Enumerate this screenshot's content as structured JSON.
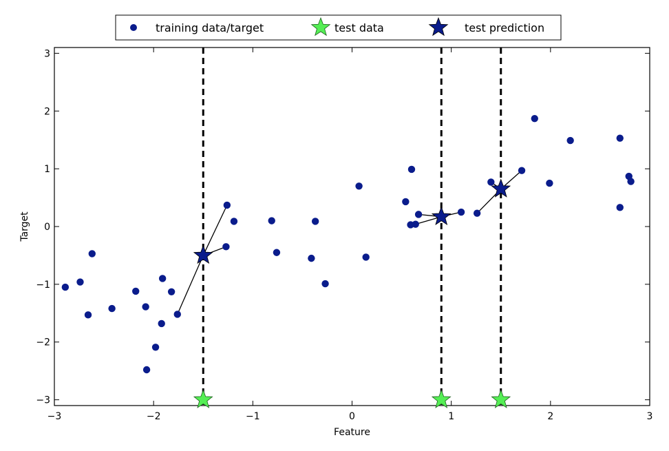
{
  "chart_data": {
    "type": "scatter",
    "xlabel": "Feature",
    "ylabel": "Target",
    "xlim": [
      -3,
      3
    ],
    "ylim": [
      -3.1,
      3.1
    ],
    "xticks": [
      -3,
      -2,
      -1,
      0,
      1,
      2,
      3
    ],
    "xtick_labels": [
      "−3",
      "−2",
      "−1",
      "0",
      "1",
      "2",
      "3"
    ],
    "yticks": [
      -3,
      -2,
      -1,
      0,
      1,
      2,
      3
    ],
    "ytick_labels": [
      "−3",
      "−2",
      "−1",
      "0",
      "1",
      "2",
      "3"
    ],
    "legend_position": "top-center",
    "legend": [
      {
        "label": "training data/target",
        "marker": "circle",
        "color": "#0a1c8c"
      },
      {
        "label": "test data",
        "marker": "star",
        "color": "#55ee55"
      },
      {
        "label": "test prediction",
        "marker": "star",
        "color": "#0a1c8c"
      }
    ],
    "series": [
      {
        "name": "training data/target",
        "color": "#0a1c8c",
        "points": [
          [
            -2.89,
            -1.05
          ],
          [
            -2.74,
            -0.96
          ],
          [
            -2.66,
            -1.53
          ],
          [
            -2.62,
            -0.47
          ],
          [
            -2.42,
            -1.42
          ],
          [
            -2.18,
            -1.12
          ],
          [
            -2.08,
            -1.39
          ],
          [
            -2.07,
            -2.48
          ],
          [
            -1.98,
            -2.09
          ],
          [
            -1.92,
            -1.68
          ],
          [
            -1.91,
            -0.9
          ],
          [
            -1.82,
            -1.13
          ],
          [
            -1.76,
            -1.52
          ],
          [
            -1.26,
            0.37
          ],
          [
            -1.27,
            -0.35
          ],
          [
            -1.19,
            0.09
          ],
          [
            -0.81,
            0.1
          ],
          [
            -0.76,
            -0.45
          ],
          [
            -0.41,
            -0.55
          ],
          [
            -0.37,
            0.09
          ],
          [
            -0.27,
            -0.99
          ],
          [
            0.07,
            0.7
          ],
          [
            0.14,
            -0.53
          ],
          [
            0.54,
            0.43
          ],
          [
            0.59,
            0.03
          ],
          [
            0.6,
            0.99
          ],
          [
            0.64,
            0.04
          ],
          [
            0.67,
            0.21
          ],
          [
            1.1,
            0.25
          ],
          [
            1.26,
            0.23
          ],
          [
            1.4,
            0.77
          ],
          [
            1.71,
            0.97
          ],
          [
            1.84,
            1.87
          ],
          [
            1.99,
            0.75
          ],
          [
            2.2,
            1.49
          ],
          [
            2.7,
            1.53
          ],
          [
            2.7,
            0.33
          ],
          [
            2.79,
            0.87
          ],
          [
            2.81,
            0.78
          ]
        ]
      },
      {
        "name": "test data",
        "color": "#55ee55",
        "points": [
          [
            -1.5,
            -3.0
          ],
          [
            0.9,
            -3.0
          ],
          [
            1.5,
            -3.0
          ]
        ]
      },
      {
        "name": "test prediction",
        "color": "#0a1c8c",
        "points": [
          [
            -1.5,
            -0.5
          ],
          [
            0.9,
            0.17
          ],
          [
            1.5,
            0.65
          ]
        ]
      }
    ],
    "neighbor_links": [
      {
        "from": [
          -1.5,
          -0.5
        ],
        "to": [
          [
            -1.26,
            0.37
          ],
          [
            -1.27,
            -0.35
          ],
          [
            -1.76,
            -1.52
          ]
        ]
      },
      {
        "from": [
          0.9,
          0.17
        ],
        "to": [
          [
            1.1,
            0.25
          ],
          [
            0.64,
            0.04
          ],
          [
            0.67,
            0.21
          ]
        ]
      },
      {
        "from": [
          1.5,
          0.65
        ],
        "to": [
          [
            1.4,
            0.77
          ],
          [
            1.71,
            0.97
          ],
          [
            1.26,
            0.23
          ]
        ]
      }
    ],
    "vertical_lines_x": [
      -1.5,
      0.9,
      1.5
    ]
  }
}
